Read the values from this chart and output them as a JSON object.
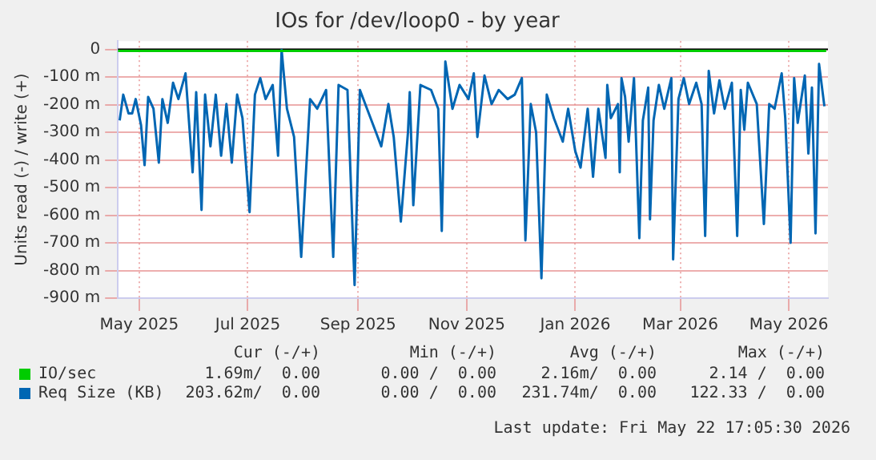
{
  "chart_data": {
    "type": "line",
    "title": "IOs for /dev/loop0 - by year",
    "ylabel": "Units read (-) / write (+)",
    "xlim": [
      "2025-04-19",
      "2026-05-23"
    ],
    "xticks": [
      {
        "value": "2025-05-01",
        "label": "May 2025"
      },
      {
        "value": "2025-07-01",
        "label": "Jul 2025"
      },
      {
        "value": "2025-09-01",
        "label": "Sep 2025"
      },
      {
        "value": "2025-11-01",
        "label": "Nov 2025"
      },
      {
        "value": "2026-01-01",
        "label": "Jan 2026"
      },
      {
        "value": "2026-03-01",
        "label": "Mar 2026"
      },
      {
        "value": "2026-05-01",
        "label": "May 2026"
      }
    ],
    "ylim": [
      -900,
      30
    ],
    "yticks": [
      {
        "value": -900,
        "label": "-900 m"
      },
      {
        "value": -800,
        "label": "-800 m"
      },
      {
        "value": -700,
        "label": "-700 m"
      },
      {
        "value": -600,
        "label": "-600 m"
      },
      {
        "value": -500,
        "label": "-500 m"
      },
      {
        "value": -400,
        "label": "-400 m"
      },
      {
        "value": -300,
        "label": "-300 m"
      },
      {
        "value": -200,
        "label": "-200 m"
      },
      {
        "value": -100,
        "label": "-100 m"
      },
      0
    ],
    "grid": true,
    "legend": "bottom",
    "marker": "none",
    "line_style": "solid",
    "ref_lines": [
      {
        "axis": "y",
        "value": 0,
        "color": "#000000"
      }
    ],
    "series": [
      {
        "name": "IO/sec",
        "color": "#00cc00",
        "x": [
          "2025-04-19",
          "2026-05-22"
        ],
        "values": [
          -6,
          -6
        ]
      },
      {
        "name": "Req Size (KB)",
        "color": "#0066b3",
        "x": [
          "2025-04-20",
          "2025-04-22",
          "2025-04-25",
          "2025-04-27",
          "2025-04-29",
          "2025-05-02",
          "2025-05-04",
          "2025-05-06",
          "2025-05-09",
          "2025-05-12",
          "2025-05-14",
          "2025-05-17",
          "2025-05-20",
          "2025-05-23",
          "2025-05-27",
          "2025-05-31",
          "2025-06-02",
          "2025-06-05",
          "2025-06-07",
          "2025-06-10",
          "2025-06-13",
          "2025-06-16",
          "2025-06-19",
          "2025-06-22",
          "2025-06-25",
          "2025-06-28",
          "2025-07-02",
          "2025-07-05",
          "2025-07-08",
          "2025-07-11",
          "2025-07-15",
          "2025-07-18",
          "2025-07-20",
          "2025-07-23",
          "2025-07-27",
          "2025-07-31",
          "2025-08-05",
          "2025-08-09",
          "2025-08-14",
          "2025-08-18",
          "2025-08-21",
          "2025-08-26",
          "2025-08-30",
          "2025-09-02",
          "2025-09-06",
          "2025-09-11",
          "2025-09-14",
          "2025-09-18",
          "2025-09-21",
          "2025-09-25",
          "2025-09-29",
          "2025-09-30",
          "2025-10-02",
          "2025-10-06",
          "2025-10-12",
          "2025-10-16",
          "2025-10-18",
          "2025-10-20",
          "2025-10-24",
          "2025-10-28",
          "2025-11-02",
          "2025-11-05",
          "2025-11-07",
          "2025-11-11",
          "2025-11-15",
          "2025-11-19",
          "2025-11-24",
          "2025-11-28",
          "2025-12-02",
          "2025-12-04",
          "2025-12-07",
          "2025-12-10",
          "2025-12-13",
          "2025-12-16",
          "2025-12-20",
          "2025-12-25",
          "2025-12-28",
          "2026-01-01",
          "2026-01-04",
          "2026-01-08",
          "2026-01-11",
          "2026-01-14",
          "2026-01-18",
          "2026-01-19",
          "2026-01-21",
          "2026-01-25",
          "2026-01-26",
          "2026-01-27",
          "2026-01-29",
          "2026-01-31",
          "2026-02-03",
          "2026-02-06",
          "2026-02-08",
          "2026-02-11",
          "2026-02-12",
          "2026-02-14",
          "2026-02-17",
          "2026-02-20",
          "2026-02-24",
          "2026-02-25",
          "2026-02-28",
          "2026-03-03",
          "2026-03-06",
          "2026-03-10",
          "2026-03-13",
          "2026-03-15",
          "2026-03-17",
          "2026-03-20",
          "2026-03-23",
          "2026-03-26",
          "2026-03-30",
          "2026-04-02",
          "2026-04-04",
          "2026-04-06",
          "2026-04-08",
          "2026-04-13",
          "2026-04-17",
          "2026-04-20",
          "2026-04-23",
          "2026-04-27",
          "2026-04-29",
          "2026-05-02",
          "2026-05-04",
          "2026-05-06",
          "2026-05-10",
          "2026-05-12",
          "2026-05-14",
          "2026-05-16",
          "2026-05-18",
          "2026-05-21"
        ],
        "values": [
          -257,
          -164,
          -232,
          -232,
          -180,
          -274,
          -419,
          -172,
          -215,
          -410,
          -180,
          -266,
          -121,
          -180,
          -87,
          -445,
          -155,
          -581,
          -164,
          -351,
          -164,
          -385,
          -198,
          -410,
          -164,
          -249,
          -589,
          -164,
          -104,
          -180,
          -129,
          -385,
          -2,
          -215,
          -317,
          -751,
          -180,
          -215,
          -147,
          -751,
          -129,
          -147,
          -853,
          -147,
          -215,
          -300,
          -351,
          -198,
          -317,
          -623,
          -300,
          -155,
          -564,
          -129,
          -147,
          -215,
          -657,
          -44,
          -215,
          -129,
          -180,
          -87,
          -317,
          -95,
          -198,
          -147,
          -180,
          -164,
          -104,
          -691,
          -198,
          -300,
          -828,
          -164,
          -249,
          -334,
          -215,
          -368,
          -428,
          -215,
          -461,
          -215,
          -393,
          -129,
          -249,
          -198,
          -445,
          -104,
          -172,
          -334,
          -104,
          -683,
          -257,
          -138,
          -615,
          -257,
          -129,
          -215,
          -104,
          -760,
          -180,
          -104,
          -198,
          -121,
          -198,
          -675,
          -78,
          -232,
          -112,
          -215,
          -121,
          -675,
          -147,
          -291,
          -121,
          -198,
          -632,
          -198,
          -215,
          -87,
          -249,
          -700,
          -104,
          -266,
          -95,
          -377,
          -138,
          -666,
          -53,
          -206
        ]
      }
    ],
    "annotations": [
      "Cur (-/+)",
      "Min (-/+)",
      "Avg (-/+)",
      "Max (-/+)",
      "1.69m/  0.00",
      "0.00 /  0.00",
      "2.16m/  0.00",
      "2.14 /  0.00",
      "203.62m/  0.00",
      "0.00 /  0.00",
      "231.74m/  0.00",
      "122.33 /  0.00",
      "Last update: Fri May 22 17:05:30 2026"
    ]
  }
}
